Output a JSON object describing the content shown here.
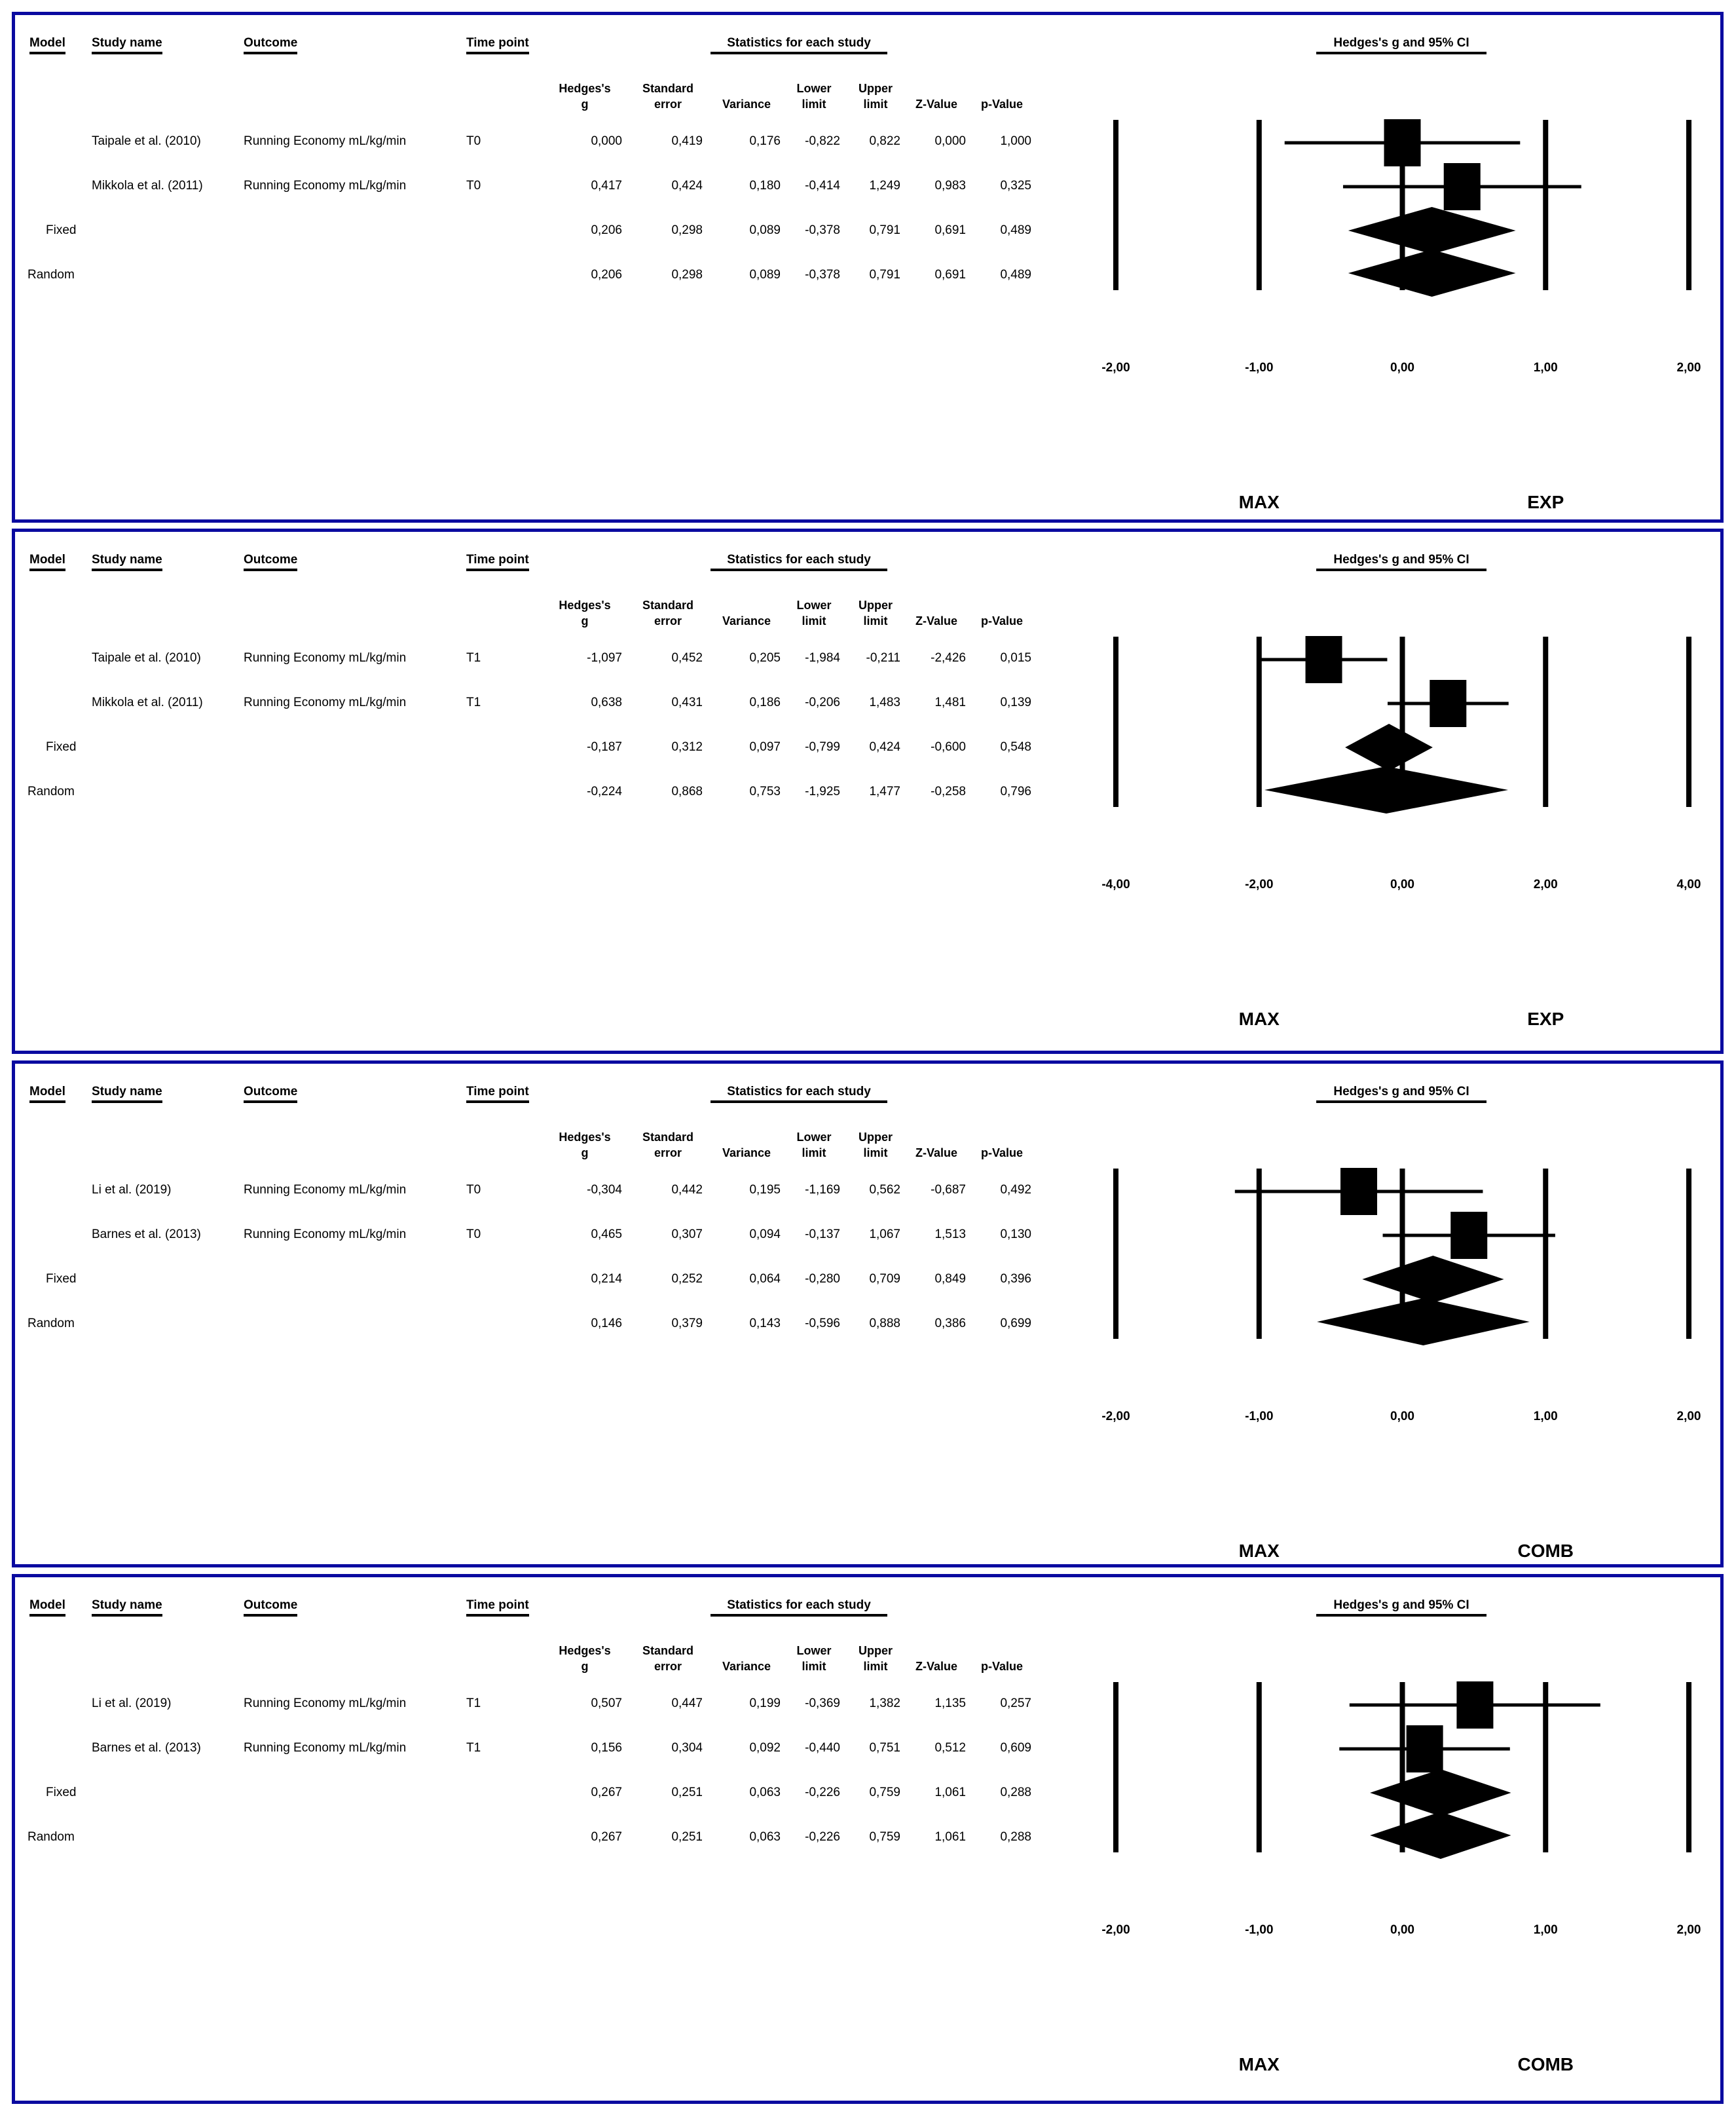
{
  "headers": {
    "model": "Model",
    "study_name": "Study name",
    "outcome": "Outcome",
    "time_point": "Time point",
    "stats": "Statistics for each study",
    "plot_title": "Hedges's g and 95% CI",
    "cols": [
      {
        "l1": "Hedges's",
        "l2": "g"
      },
      {
        "l1": "Standard",
        "l2": "error"
      },
      {
        "l1": "",
        "l2": "Variance"
      },
      {
        "l1": "Lower",
        "l2": "limit"
      },
      {
        "l1": "Upper",
        "l2": "limit"
      },
      {
        "l1": "",
        "l2": "Z-Value"
      },
      {
        "l1": "",
        "l2": "p-Value"
      }
    ]
  },
  "panels": [
    {
      "left_label": "MAX",
      "right_label": "EXP",
      "ticks": [
        "-2,00",
        "-1,00",
        "0,00",
        "1,00",
        "2,00"
      ],
      "rows": [
        {
          "model": "",
          "study": "Taipale et al. (2010)",
          "outcome": "Running Economy mL/kg/min",
          "time": "T0",
          "vals": [
            "0,000",
            "0,419",
            "0,176",
            "-0,822",
            "0,822",
            "0,000",
            "1,000"
          ]
        },
        {
          "model": "",
          "study": "Mikkola et al. (2011)",
          "outcome": "Running Economy mL/kg/min",
          "time": "T0",
          "vals": [
            "0,417",
            "0,424",
            "0,180",
            "-0,414",
            "1,249",
            "0,983",
            "0,325"
          ]
        },
        {
          "model": "Fixed",
          "study": "",
          "outcome": "",
          "time": "",
          "vals": [
            "0,206",
            "0,298",
            "0,089",
            "-0,378",
            "0,791",
            "0,691",
            "0,489"
          ]
        },
        {
          "model": "Random",
          "study": "",
          "outcome": "",
          "time": "",
          "vals": [
            "0,206",
            "0,298",
            "0,089",
            "-0,378",
            "0,791",
            "0,691",
            "0,489"
          ]
        }
      ]
    },
    {
      "left_label": "MAX",
      "right_label": "EXP",
      "ticks": [
        "-4,00",
        "-2,00",
        "0,00",
        "2,00",
        "4,00"
      ],
      "rows": [
        {
          "model": "",
          "study": "Taipale et al. (2010)",
          "outcome": "Running Economy mL/kg/min",
          "time": "T1",
          "vals": [
            "-1,097",
            "0,452",
            "0,205",
            "-1,984",
            "-0,211",
            "-2,426",
            "0,015"
          ]
        },
        {
          "model": "",
          "study": "Mikkola et al. (2011)",
          "outcome": "Running Economy mL/kg/min",
          "time": "T1",
          "vals": [
            "0,638",
            "0,431",
            "0,186",
            "-0,206",
            "1,483",
            "1,481",
            "0,139"
          ]
        },
        {
          "model": "Fixed",
          "study": "",
          "outcome": "",
          "time": "",
          "vals": [
            "-0,187",
            "0,312",
            "0,097",
            "-0,799",
            "0,424",
            "-0,600",
            "0,548"
          ]
        },
        {
          "model": "Random",
          "study": "",
          "outcome": "",
          "time": "",
          "vals": [
            "-0,224",
            "0,868",
            "0,753",
            "-1,925",
            "1,477",
            "-0,258",
            "0,796"
          ]
        }
      ]
    },
    {
      "left_label": "MAX",
      "right_label": "COMB",
      "ticks": [
        "-2,00",
        "-1,00",
        "0,00",
        "1,00",
        "2,00"
      ],
      "rows": [
        {
          "model": "",
          "study": "Li et al. (2019)",
          "outcome": "Running Economy mL/kg/min",
          "time": "T0",
          "vals": [
            "-0,304",
            "0,442",
            "0,195",
            "-1,169",
            "0,562",
            "-0,687",
            "0,492"
          ]
        },
        {
          "model": "",
          "study": "Barnes et al. (2013)",
          "outcome": "Running Economy mL/kg/min",
          "time": "T0",
          "vals": [
            "0,465",
            "0,307",
            "0,094",
            "-0,137",
            "1,067",
            "1,513",
            "0,130"
          ]
        },
        {
          "model": "Fixed",
          "study": "",
          "outcome": "",
          "time": "",
          "vals": [
            "0,214",
            "0,252",
            "0,064",
            "-0,280",
            "0,709",
            "0,849",
            "0,396"
          ]
        },
        {
          "model": "Random",
          "study": "",
          "outcome": "",
          "time": "",
          "vals": [
            "0,146",
            "0,379",
            "0,143",
            "-0,596",
            "0,888",
            "0,386",
            "0,699"
          ]
        }
      ]
    },
    {
      "left_label": "MAX",
      "right_label": "COMB",
      "ticks": [
        "-2,00",
        "-1,00",
        "0,00",
        "1,00",
        "2,00"
      ],
      "rows": [
        {
          "model": "",
          "study": "Li et al. (2019)",
          "outcome": "Running Economy mL/kg/min",
          "time": "T1",
          "vals": [
            "0,507",
            "0,447",
            "0,199",
            "-0,369",
            "1,382",
            "1,135",
            "0,257"
          ]
        },
        {
          "model": "",
          "study": "Barnes et al. (2013)",
          "outcome": "Running Economy mL/kg/min",
          "time": "T1",
          "vals": [
            "0,156",
            "0,304",
            "0,092",
            "-0,440",
            "0,751",
            "0,512",
            "0,609"
          ]
        },
        {
          "model": "Fixed",
          "study": "",
          "outcome": "",
          "time": "",
          "vals": [
            "0,267",
            "0,251",
            "0,063",
            "-0,226",
            "0,759",
            "1,061",
            "0,288"
          ]
        },
        {
          "model": "Random",
          "study": "",
          "outcome": "",
          "time": "",
          "vals": [
            "0,267",
            "0,251",
            "0,063",
            "-0,226",
            "0,759",
            "1,061",
            "0,288"
          ]
        }
      ]
    }
  ],
  "chart_data": [
    {
      "type": "forest",
      "title": "Hedges's g and 95% CI",
      "xlim": [
        -2,
        2
      ],
      "xticks": [
        -2,
        -1,
        0,
        1,
        2
      ],
      "xlabel_left": "MAX",
      "xlabel_right": "EXP",
      "time_point": "T0",
      "series": [
        {
          "name": "Taipale et al. (2010)",
          "g": 0.0,
          "lower": -0.822,
          "upper": 0.822
        },
        {
          "name": "Mikkola et al. (2011)",
          "g": 0.417,
          "lower": -0.414,
          "upper": 1.249
        },
        {
          "name": "Fixed",
          "g": 0.206,
          "lower": -0.378,
          "upper": 0.791
        },
        {
          "name": "Random",
          "g": 0.206,
          "lower": -0.378,
          "upper": 0.791
        }
      ]
    },
    {
      "type": "forest",
      "title": "Hedges's g and 95% CI",
      "xlim": [
        -4,
        4
      ],
      "xticks": [
        -4,
        -2,
        0,
        2,
        4
      ],
      "xlabel_left": "MAX",
      "xlabel_right": "EXP",
      "time_point": "T1",
      "series": [
        {
          "name": "Taipale et al. (2010)",
          "g": -1.097,
          "lower": -1.984,
          "upper": -0.211
        },
        {
          "name": "Mikkola et al. (2011)",
          "g": 0.638,
          "lower": -0.206,
          "upper": 1.483
        },
        {
          "name": "Fixed",
          "g": -0.187,
          "lower": -0.799,
          "upper": 0.424
        },
        {
          "name": "Random",
          "g": -0.224,
          "lower": -1.925,
          "upper": 1.477
        }
      ]
    },
    {
      "type": "forest",
      "title": "Hedges's g and 95% CI",
      "xlim": [
        -2,
        2
      ],
      "xticks": [
        -2,
        -1,
        0,
        1,
        2
      ],
      "xlabel_left": "MAX",
      "xlabel_right": "COMB",
      "time_point": "T0",
      "series": [
        {
          "name": "Li et al. (2019)",
          "g": -0.304,
          "lower": -1.169,
          "upper": 0.562
        },
        {
          "name": "Barnes et al. (2013)",
          "g": 0.465,
          "lower": -0.137,
          "upper": 1.067
        },
        {
          "name": "Fixed",
          "g": 0.214,
          "lower": -0.28,
          "upper": 0.709
        },
        {
          "name": "Random",
          "g": 0.146,
          "lower": -0.596,
          "upper": 0.888
        }
      ]
    },
    {
      "type": "forest",
      "title": "Hedges's g and 95% CI",
      "xlim": [
        -2,
        2
      ],
      "xticks": [
        -2,
        -1,
        0,
        1,
        2
      ],
      "xlabel_left": "MAX",
      "xlabel_right": "COMB",
      "time_point": "T1",
      "series": [
        {
          "name": "Li et al. (2019)",
          "g": 0.507,
          "lower": -0.369,
          "upper": 1.382
        },
        {
          "name": "Barnes et al. (2013)",
          "g": 0.156,
          "lower": -0.44,
          "upper": 0.751
        },
        {
          "name": "Fixed",
          "g": 0.267,
          "lower": -0.226,
          "upper": 0.759
        },
        {
          "name": "Random",
          "g": 0.267,
          "lower": -0.226,
          "upper": 0.759
        }
      ]
    }
  ]
}
